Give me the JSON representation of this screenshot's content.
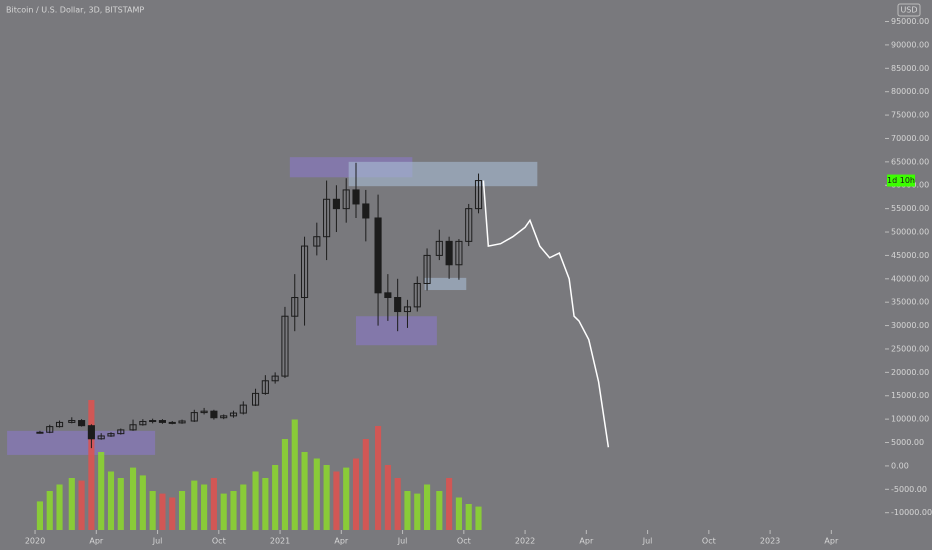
{
  "chart_data": {
    "type": "candlestick",
    "title": "Bitcoin / U.S. Dollar, 3D, BITSTAMP",
    "currency": "USD",
    "countdown_label": "1d 10h",
    "xlim": [
      2019.857,
      2023.469
    ],
    "ylim": [
      -13700,
      99600
    ],
    "xticks": [
      {
        "value": 2020,
        "label": "2020"
      },
      {
        "value": 2020.25,
        "label": "Apr"
      },
      {
        "value": 2020.5,
        "label": "Jul"
      },
      {
        "value": 2020.75,
        "label": "Oct"
      },
      {
        "value": 2021,
        "label": "2021"
      },
      {
        "value": 2021.25,
        "label": "Apr"
      },
      {
        "value": 2021.5,
        "label": "Jul"
      },
      {
        "value": 2021.75,
        "label": "Oct"
      },
      {
        "value": 2022,
        "label": "2022"
      },
      {
        "value": 2022.25,
        "label": "Apr"
      },
      {
        "value": 2022.5,
        "label": "Jul"
      },
      {
        "value": 2022.75,
        "label": "Oct"
      },
      {
        "value": 2023,
        "label": "2023"
      },
      {
        "value": 2023.25,
        "label": "Apr"
      }
    ],
    "yticks": [
      {
        "value": 95000,
        "label": "95000.00"
      },
      {
        "value": 90000,
        "label": "90000.00"
      },
      {
        "value": 85000,
        "label": "85000.00"
      },
      {
        "value": 80000,
        "label": "80000.00"
      },
      {
        "value": 75000,
        "label": "75000.00"
      },
      {
        "value": 70000,
        "label": "70000.00"
      },
      {
        "value": 65000,
        "label": "65000.00"
      },
      {
        "value": 60000,
        "label": "60000.00"
      },
      {
        "value": 55000,
        "label": "55000.00"
      },
      {
        "value": 50000,
        "label": "50000.00"
      },
      {
        "value": 45000,
        "label": "45000.00"
      },
      {
        "value": 40000,
        "label": "40000.00"
      },
      {
        "value": 35000,
        "label": "35000.00"
      },
      {
        "value": 30000,
        "label": "30000.00"
      },
      {
        "value": 25000,
        "label": "25000.00"
      },
      {
        "value": 20000,
        "label": "20000.00"
      },
      {
        "value": 15000,
        "label": "15000.00"
      },
      {
        "value": 10000,
        "label": "10000.00"
      },
      {
        "value": 5000,
        "label": "5000.00"
      },
      {
        "value": 0,
        "label": "0.00"
      },
      {
        "value": -5000,
        "label": "-5000.00"
      },
      {
        "value": -10000,
        "label": "-10000.00"
      }
    ],
    "x": [
      2020.02,
      2020.06,
      2020.1,
      2020.15,
      2020.19,
      2020.23,
      2020.27,
      2020.31,
      2020.35,
      2020.4,
      2020.44,
      2020.48,
      2020.52,
      2020.56,
      2020.6,
      2020.65,
      2020.69,
      2020.73,
      2020.77,
      2020.81,
      2020.85,
      2020.9,
      2020.94,
      2020.98,
      2021.02,
      2021.06,
      2021.1,
      2021.15,
      2021.19,
      2021.23,
      2021.27,
      2021.31,
      2021.35,
      2021.4,
      2021.44,
      2021.48,
      2021.52,
      2021.56,
      2021.6,
      2021.65,
      2021.69,
      2021.73,
      2021.77,
      2021.81
    ],
    "open": [
      7000,
      7200,
      8400,
      9300,
      9700,
      8600,
      5800,
      6400,
      6900,
      7700,
      8800,
      9500,
      9700,
      9300,
      9200,
      9600,
      11400,
      11700,
      10300,
      10700,
      11300,
      13000,
      15500,
      18200,
      19200,
      32000,
      36000,
      47000,
      49000,
      57000,
      55000,
      59000,
      56000,
      53000,
      37000,
      36000,
      33000,
      34000,
      39000,
      45000,
      48000,
      43000,
      48000,
      55000
    ],
    "high": [
      7500,
      8800,
      9700,
      10400,
      10000,
      8900,
      7000,
      7200,
      8000,
      9900,
      10000,
      10100,
      10000,
      9600,
      9900,
      12000,
      12400,
      12000,
      11000,
      11800,
      13800,
      16500,
      19400,
      20000,
      34000,
      41000,
      49000,
      52000,
      61000,
      60000,
      61500,
      64800,
      59000,
      58000,
      41000,
      40000,
      35500,
      40500,
      46500,
      50500,
      49000,
      48500,
      56000,
      62500
    ],
    "low": [
      6900,
      7000,
      8200,
      9100,
      8400,
      3800,
      5600,
      6200,
      6700,
      7500,
      8600,
      9100,
      9000,
      8900,
      9000,
      9400,
      11000,
      9900,
      10000,
      10300,
      11000,
      12800,
      15200,
      17600,
      18800,
      28800,
      30000,
      45000,
      44000,
      50000,
      52000,
      53000,
      48000,
      30000,
      31000,
      28800,
      29500,
      33000,
      37500,
      44000,
      40000,
      39800,
      47000,
      54000
    ],
    "close": [
      7200,
      8400,
      9300,
      9700,
      8600,
      5800,
      6400,
      6900,
      7700,
      8800,
      9500,
      9700,
      9300,
      9200,
      9600,
      11400,
      11700,
      10300,
      10700,
      11300,
      13000,
      15500,
      18200,
      19200,
      32000,
      36000,
      47000,
      49000,
      57000,
      55000,
      59000,
      56000,
      53000,
      37000,
      36000,
      33000,
      34000,
      39000,
      45000,
      48000,
      43000,
      48000,
      55000,
      61000
    ],
    "candle_color": "#1c1c1c",
    "volume": [
      22,
      30,
      35,
      40,
      38,
      100,
      60,
      45,
      40,
      48,
      42,
      30,
      28,
      25,
      30,
      38,
      35,
      40,
      28,
      30,
      35,
      45,
      40,
      50,
      70,
      85,
      60,
      55,
      50,
      45,
      48,
      55,
      70,
      80,
      50,
      40,
      30,
      28,
      35,
      30,
      40,
      25,
      20,
      18
    ],
    "vlim": [
      0,
      100
    ],
    "up_color": "#8cd92c",
    "down_color": "#e0514e",
    "projection": {
      "color": "#ffffff",
      "x": [
        2021.83,
        2021.85,
        2021.9,
        2021.95,
        2022.0,
        2022.02,
        2022.06,
        2022.1,
        2022.14,
        2022.18,
        2022.2,
        2022.22,
        2022.26,
        2022.3,
        2022.34
      ],
      "y": [
        61000,
        47000,
        47500,
        49000,
        51000,
        52500,
        47000,
        44500,
        45500,
        40000,
        32000,
        31000,
        27000,
        18000,
        4000
      ]
    },
    "zones": [
      {
        "x0": 2019.886,
        "x1": 2020.49,
        "y0": 2350,
        "y1": 7500,
        "color": "#8a78c8"
      },
      {
        "x0": 2021.04,
        "x1": 2021.54,
        "y0": 61700,
        "y1": 66000,
        "color": "#8a78c8"
      },
      {
        "x0": 2021.28,
        "x1": 2022.05,
        "y0": 59800,
        "y1": 65000,
        "color": "#a9bcd4"
      },
      {
        "x0": 2021.31,
        "x1": 2021.64,
        "y0": 25800,
        "y1": 32000,
        "color": "#8a78c8"
      },
      {
        "x0": 2021.59,
        "x1": 2021.76,
        "y0": 37600,
        "y1": 40200,
        "color": "#a9bcd4"
      }
    ],
    "countdown_color": "#3cff00"
  }
}
